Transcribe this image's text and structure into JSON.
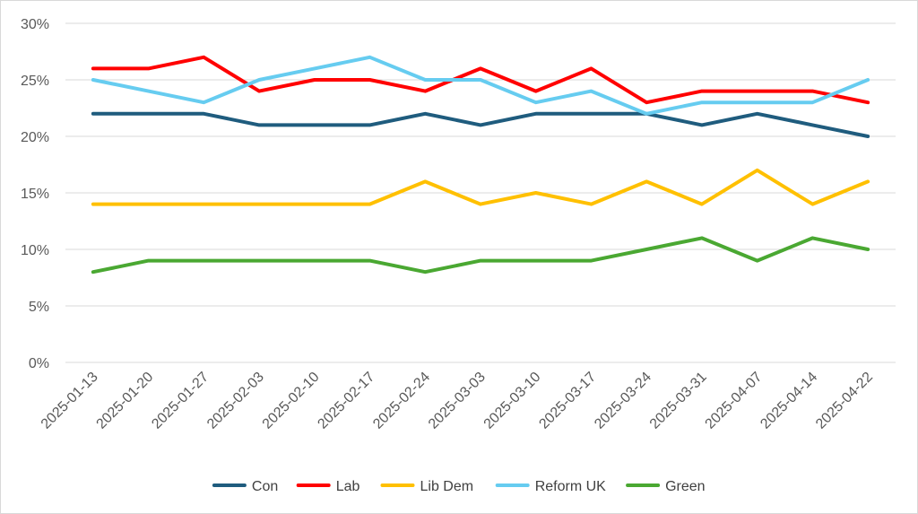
{
  "chart_data": {
    "type": "line",
    "title": "",
    "xlabel": "",
    "ylabel": "",
    "categories": [
      "2025-01-13",
      "2025-01-20",
      "2025-01-27",
      "2025-02-03",
      "2025-02-10",
      "2025-02-17",
      "2025-02-24",
      "2025-03-03",
      "2025-03-10",
      "2025-03-17",
      "2025-03-24",
      "2025-03-31",
      "2025-04-07",
      "2025-04-14",
      "2025-04-22"
    ],
    "ylim": [
      0,
      30
    ],
    "y_ticks": [
      0,
      5,
      10,
      15,
      20,
      25,
      30
    ],
    "y_tick_labels": [
      "0%",
      "5%",
      "10%",
      "15%",
      "20%",
      "25%",
      "30%"
    ],
    "grid": "horizontal",
    "legend_position": "bottom",
    "series": [
      {
        "name": "Con",
        "color": "#1f5c7e",
        "values": [
          22,
          22,
          22,
          21,
          21,
          21,
          22,
          21,
          22,
          22,
          22,
          21,
          22,
          21,
          20
        ]
      },
      {
        "name": "Lab",
        "color": "#ff0000",
        "values": [
          26,
          26,
          27,
          24,
          25,
          25,
          24,
          26,
          24,
          26,
          23,
          24,
          24,
          24,
          23
        ]
      },
      {
        "name": "Lib Dem",
        "color": "#ffc000",
        "values": [
          14,
          14,
          14,
          14,
          14,
          14,
          16,
          14,
          15,
          14,
          16,
          14,
          17,
          14,
          16
        ]
      },
      {
        "name": "Reform UK",
        "color": "#66ccf0",
        "values": [
          25,
          24,
          23,
          25,
          26,
          27,
          25,
          25,
          23,
          24,
          22,
          23,
          23,
          23,
          25
        ]
      },
      {
        "name": "Green",
        "color": "#4aa832",
        "values": [
          8,
          9,
          9,
          9,
          9,
          9,
          8,
          9,
          9,
          9,
          10,
          11,
          9,
          11,
          10
        ]
      }
    ]
  }
}
